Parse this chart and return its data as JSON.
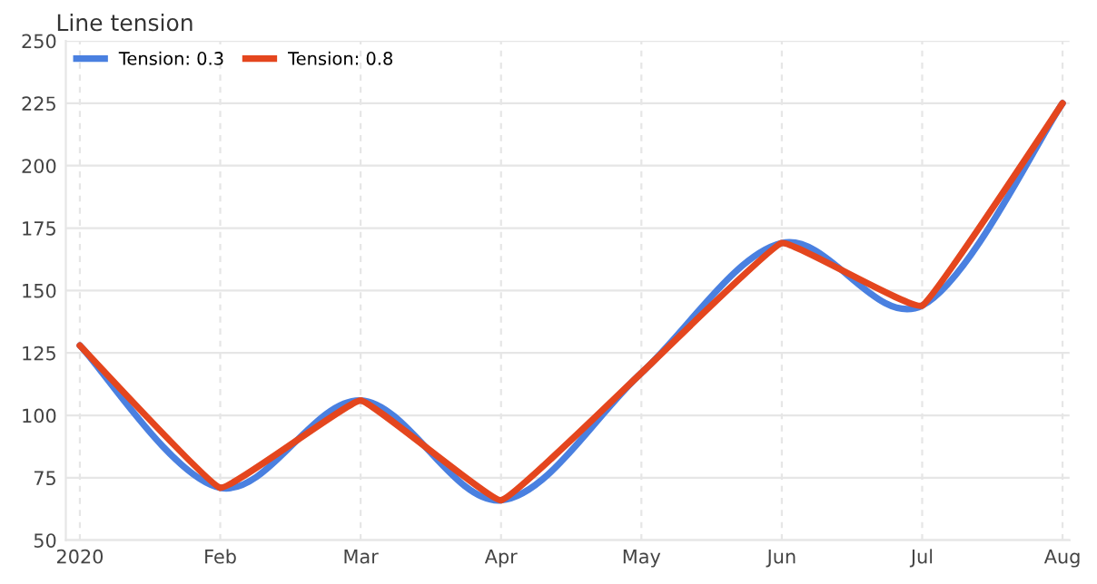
{
  "chart_data": {
    "type": "line",
    "title": "Line tension",
    "categories": [
      "2020",
      "Feb",
      "Mar",
      "Apr",
      "May",
      "Jun",
      "Jul",
      "Aug"
    ],
    "series": [
      {
        "name": "Tension: 0.3",
        "color": "#4a80e0",
        "values": [
          128,
          71,
          106,
          66,
          117,
          169,
          144,
          225
        ]
      },
      {
        "name": "Tension: 0.8",
        "color": "#e4461e",
        "values": [
          128,
          71,
          106,
          66,
          117,
          169,
          144,
          225
        ]
      }
    ],
    "ylim": [
      50,
      250
    ],
    "yticks": [
      50,
      75,
      100,
      125,
      150,
      175,
      200,
      225,
      250
    ],
    "grid": true,
    "legend": "top left",
    "marker": "none",
    "line_style": "solid"
  }
}
